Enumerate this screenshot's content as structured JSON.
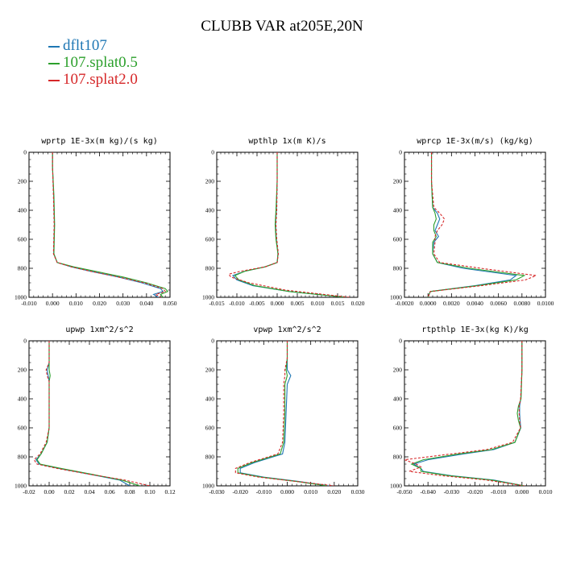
{
  "title": "CLUBB VAR at205E,20N",
  "legend": [
    {
      "label": "dflt107",
      "color": "#1f77b4"
    },
    {
      "label": "107.splat0.5",
      "color": "#2ca02c"
    },
    {
      "label": "107.splat2.0",
      "color": "#d62728"
    }
  ],
  "chart_data": [
    {
      "type": "line",
      "title": "wprtp  1E-3x(m kg)/(s kg)",
      "xlim": [
        -0.01,
        0.05
      ],
      "ylim": [
        0,
        1000
      ],
      "y_inverted": true,
      "xticks": [
        "-0.010",
        "0.000",
        "0.010",
        "0.020",
        "0.030",
        "0.040",
        "0.050"
      ],
      "xtick_values": [
        -0.01,
        0.0,
        0.01,
        0.02,
        0.03,
        0.04,
        0.05
      ],
      "yticks": [
        0,
        200,
        400,
        600,
        800,
        1000
      ],
      "series": [
        {
          "name": "dflt107",
          "y": [
            0,
            100,
            300,
            500,
            700,
            760,
            790,
            820,
            860,
            900,
            940,
            960,
            980,
            1000
          ],
          "x": [
            0,
            0,
            0.0005,
            0.0008,
            0.0005,
            0.002,
            0.008,
            0.016,
            0.028,
            0.038,
            0.046,
            0.047,
            0.043,
            0.045
          ]
        },
        {
          "name": "107.splat0.5",
          "y": [
            0,
            100,
            300,
            500,
            700,
            760,
            790,
            820,
            860,
            900,
            940,
            960,
            980,
            1000
          ],
          "x": [
            0,
            0,
            0.0006,
            0.0009,
            0.0006,
            0.002,
            0.009,
            0.018,
            0.03,
            0.04,
            0.048,
            0.049,
            0.046,
            0.047
          ]
        },
        {
          "name": "107.splat2.0",
          "y": [
            0,
            100,
            300,
            500,
            700,
            760,
            790,
            820,
            860,
            900,
            940,
            960,
            980,
            1000
          ],
          "x": [
            0,
            0,
            0.0004,
            0.0007,
            0.0004,
            0.002,
            0.008,
            0.016,
            0.028,
            0.039,
            0.047,
            0.048,
            0.044,
            0.046
          ]
        }
      ]
    },
    {
      "type": "line",
      "title": "wpthlp  1x(m K)/s",
      "xlim": [
        -0.015,
        0.02
      ],
      "ylim": [
        0,
        1000
      ],
      "y_inverted": true,
      "xticks": [
        "-0.015",
        "-0.010",
        "-0.005",
        "0.000",
        "0.005",
        "0.010",
        "0.015",
        "0.020"
      ],
      "xtick_values": [
        -0.015,
        -0.01,
        -0.005,
        0.0,
        0.005,
        0.01,
        0.015,
        0.02
      ],
      "yticks": [
        0,
        200,
        400,
        600,
        800,
        1000
      ],
      "series": [
        {
          "name": "dflt107",
          "y": [
            0,
            200,
            400,
            500,
            600,
            700,
            760,
            790,
            820,
            850,
            880,
            920,
            960,
            1000
          ],
          "x": [
            0,
            0,
            -0.0002,
            -0.0004,
            -0.0002,
            0.0002,
            0,
            -0.003,
            -0.008,
            -0.011,
            -0.01,
            -0.006,
            0.003,
            0.017
          ]
        },
        {
          "name": "107.splat0.5",
          "y": [
            0,
            200,
            400,
            500,
            600,
            700,
            760,
            790,
            820,
            850,
            880,
            920,
            960,
            1000
          ],
          "x": [
            0,
            0,
            -0.0003,
            -0.0005,
            -0.0003,
            0.0002,
            0,
            -0.003,
            -0.008,
            -0.0105,
            -0.0095,
            -0.0055,
            0.003,
            0.017
          ]
        },
        {
          "name": "107.splat2.0",
          "y": [
            0,
            200,
            400,
            500,
            600,
            700,
            760,
            790,
            820,
            840,
            860,
            900,
            950,
            1000
          ],
          "x": [
            0,
            0,
            -0.0001,
            -0.0003,
            -0.0001,
            0.0003,
            0,
            -0.003,
            -0.009,
            -0.012,
            -0.0115,
            -0.007,
            0.002,
            0.018
          ]
        }
      ]
    },
    {
      "type": "line",
      "title": "wprcp  1E-3x(m/s) (kg/kg)",
      "xlim": [
        -0.002,
        0.01
      ],
      "ylim": [
        0,
        1000
      ],
      "y_inverted": true,
      "xticks": [
        "-0.0020",
        "0.0000",
        "0.0020",
        "0.0040",
        "0.0060",
        "0.0080",
        "0.0100"
      ],
      "xtick_values": [
        -0.002,
        0.0,
        0.002,
        0.004,
        0.006,
        0.008,
        0.01
      ],
      "yticks": [
        0,
        200,
        400,
        600,
        800,
        1000
      ],
      "series": [
        {
          "name": "dflt107",
          "y": [
            0,
            200,
            380,
            420,
            460,
            500,
            540,
            580,
            620,
            700,
            760,
            800,
            850,
            880,
            920,
            960,
            1000
          ],
          "x": [
            0.0003,
            0.0003,
            0.0004,
            0.0008,
            0.001,
            0.0008,
            0.0006,
            0.0009,
            0.0005,
            0.0004,
            0.0008,
            0.003,
            0.0075,
            0.007,
            0.004,
            0.0002,
            0
          ]
        },
        {
          "name": "107.splat0.5",
          "y": [
            0,
            200,
            380,
            420,
            460,
            500,
            540,
            580,
            620,
            700,
            760,
            800,
            850,
            880,
            920,
            960,
            1000
          ],
          "x": [
            0.0003,
            0.0003,
            0.0004,
            0.0006,
            0.0007,
            0.0005,
            0.0005,
            0.0007,
            0.0004,
            0.0004,
            0.0008,
            0.0035,
            0.0082,
            0.0075,
            0.0042,
            0.0002,
            0
          ]
        },
        {
          "name": "107.splat2.0",
          "y": [
            0,
            200,
            380,
            420,
            460,
            500,
            540,
            580,
            620,
            700,
            760,
            800,
            850,
            880,
            920,
            960,
            1000
          ],
          "x": [
            0.0003,
            0.0003,
            0.0005,
            0.001,
            0.0014,
            0.0012,
            0.0008,
            0.0006,
            0.0006,
            0.0005,
            0.001,
            0.0045,
            0.0092,
            0.0083,
            0.0045,
            0.0002,
            0
          ]
        }
      ]
    },
    {
      "type": "line",
      "title": "upwp  1xm^2/s^2",
      "xlim": [
        -0.02,
        0.12
      ],
      "ylim": [
        0,
        1000
      ],
      "y_inverted": true,
      "xticks": [
        "-0.02",
        "0.00",
        "0.02",
        "0.04",
        "0.06",
        "0.08",
        "0.10",
        "0.12"
      ],
      "xtick_values": [
        -0.02,
        0.0,
        0.02,
        0.04,
        0.06,
        0.08,
        0.1,
        0.12
      ],
      "yticks": [
        0,
        200,
        400,
        600,
        800,
        1000
      ],
      "series": [
        {
          "name": "dflt107",
          "y": [
            0,
            150,
            200,
            240,
            280,
            400,
            600,
            700,
            780,
            820,
            850,
            880,
            920,
            960,
            1000
          ],
          "x": [
            0,
            0,
            -0.002,
            -0.001,
            0,
            0,
            0,
            -0.002,
            -0.008,
            -0.013,
            -0.01,
            0.01,
            0.04,
            0.07,
            0.08
          ]
        },
        {
          "name": "107.splat0.5",
          "y": [
            0,
            150,
            200,
            240,
            280,
            400,
            600,
            700,
            780,
            820,
            850,
            880,
            920,
            960,
            1000
          ],
          "x": [
            0,
            0,
            0,
            0.001,
            0,
            0,
            0,
            -0.002,
            -0.008,
            -0.012,
            -0.009,
            0.012,
            0.042,
            0.072,
            0.09
          ]
        },
        {
          "name": "107.splat2.0",
          "y": [
            0,
            150,
            200,
            240,
            280,
            400,
            600,
            700,
            780,
            820,
            850,
            880,
            920,
            960,
            1000
          ],
          "x": [
            0,
            0,
            -0.003,
            -0.002,
            0,
            0,
            0,
            -0.003,
            -0.009,
            -0.015,
            -0.012,
            0.008,
            0.04,
            0.075,
            0.1
          ]
        }
      ]
    },
    {
      "type": "line",
      "title": "vpwp  1xm^2/s^2",
      "xlim": [
        -0.03,
        0.03
      ],
      "ylim": [
        0,
        1000
      ],
      "y_inverted": true,
      "xticks": [
        "-0.030",
        "-0.020",
        "-0.010",
        "0.000",
        "0.010",
        "0.020",
        "0.030"
      ],
      "xtick_values": [
        -0.03,
        -0.02,
        -0.01,
        0.0,
        0.01,
        0.02,
        0.03
      ],
      "yticks": [
        0,
        200,
        400,
        600,
        800,
        1000
      ],
      "series": [
        {
          "name": "dflt107",
          "y": [
            0,
            120,
            200,
            240,
            300,
            500,
            700,
            780,
            800,
            840,
            880,
            910,
            940,
            970,
            1000
          ],
          "x": [
            0,
            0,
            0,
            0.0015,
            0,
            -0.0005,
            -0.001,
            -0.002,
            -0.006,
            -0.014,
            -0.02,
            -0.02,
            -0.01,
            0.005,
            0.018
          ]
        },
        {
          "name": "107.splat0.5",
          "y": [
            0,
            120,
            200,
            240,
            300,
            500,
            700,
            780,
            800,
            840,
            880,
            910,
            940,
            970,
            1000
          ],
          "x": [
            0,
            0,
            -0.0005,
            0,
            -0.001,
            -0.001,
            -0.0015,
            -0.003,
            -0.007,
            -0.015,
            -0.021,
            -0.021,
            -0.011,
            0.004,
            0.017
          ]
        },
        {
          "name": "107.splat2.0",
          "y": [
            0,
            120,
            200,
            240,
            300,
            500,
            700,
            780,
            800,
            840,
            880,
            910,
            940,
            970,
            1000
          ],
          "x": [
            0,
            0,
            -0.001,
            -0.001,
            -0.0015,
            -0.0015,
            -0.002,
            -0.004,
            -0.008,
            -0.016,
            -0.022,
            -0.022,
            -0.012,
            0.004,
            0.02
          ]
        }
      ]
    },
    {
      "type": "line",
      "title": "rtpthlp  1E-3x(kg K)/kg",
      "xlim": [
        -0.05,
        0.01
      ],
      "ylim": [
        0,
        1000
      ],
      "y_inverted": true,
      "xticks": [
        "-0.050",
        "-0.040",
        "-0.030",
        "-0.020",
        "-0.010",
        "0.000",
        "0.010"
      ],
      "xtick_values": [
        -0.05,
        -0.04,
        -0.03,
        -0.02,
        -0.01,
        0.0,
        0.01
      ],
      "yticks": [
        0,
        200,
        400,
        600,
        800,
        1000
      ],
      "series": [
        {
          "name": "dflt107",
          "y": [
            0,
            200,
            400,
            450,
            500,
            550,
            600,
            700,
            750,
            780,
            820,
            850,
            880,
            900,
            930,
            960,
            1000
          ],
          "x": [
            0,
            0,
            -0.0005,
            -0.001,
            -0.001,
            -0.0008,
            -0.0005,
            -0.003,
            -0.012,
            -0.025,
            -0.04,
            -0.046,
            -0.043,
            -0.042,
            -0.03,
            -0.012,
            0.001
          ]
        },
        {
          "name": "107.splat0.5",
          "y": [
            0,
            200,
            400,
            450,
            500,
            550,
            600,
            700,
            750,
            780,
            820,
            850,
            880,
            900,
            930,
            960,
            1000
          ],
          "x": [
            0,
            0,
            -0.0004,
            -0.0015,
            -0.002,
            -0.0015,
            -0.0006,
            -0.003,
            -0.013,
            -0.027,
            -0.042,
            -0.047,
            -0.043,
            -0.043,
            -0.031,
            -0.013,
            0.001
          ]
        },
        {
          "name": "107.splat2.0",
          "y": [
            0,
            200,
            400,
            450,
            500,
            550,
            600,
            700,
            750,
            780,
            820,
            850,
            870,
            900,
            930,
            960,
            1000
          ],
          "x": [
            0,
            0,
            -0.0006,
            -0.0012,
            -0.0012,
            -0.001,
            -0.0006,
            -0.004,
            -0.015,
            -0.03,
            -0.05,
            -0.045,
            -0.043,
            -0.048,
            -0.034,
            -0.015,
            0.001
          ]
        }
      ]
    }
  ]
}
